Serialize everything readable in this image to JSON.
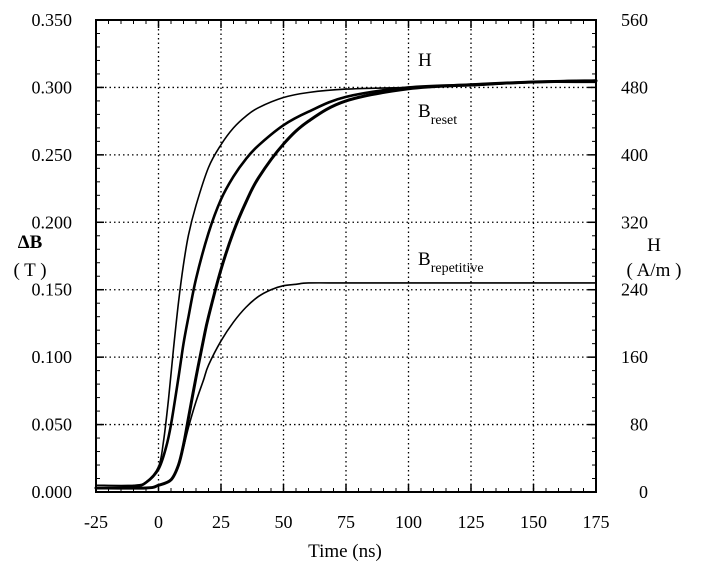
{
  "chart_data": {
    "type": "line",
    "xlabel": "Time (ns)",
    "ylabel_left_line1": "ΔB",
    "ylabel_left_line2": "( T )",
    "ylabel_right_line1": "H",
    "ylabel_right_line2": "( A/m )",
    "xlim": [
      -25,
      175
    ],
    "ylim_left": [
      0,
      0.35
    ],
    "ylim_right": [
      0,
      560
    ],
    "x_ticks": [
      "-25",
      "0",
      "25",
      "50",
      "75",
      "100",
      "125",
      "150",
      "175"
    ],
    "y_left_ticks": [
      "0.000",
      "0.050",
      "0.100",
      "0.150",
      "0.200",
      "0.250",
      "0.300",
      "0.350"
    ],
    "y_right_ticks": [
      "0",
      "80",
      "160",
      "240",
      "320",
      "400",
      "480",
      "560"
    ],
    "grid": true,
    "annotations": {
      "h_label": "H",
      "reset_main": "B",
      "reset_sub": "reset",
      "repetitive_main": "B",
      "repetitive_sub": "repetitive"
    },
    "series": [
      {
        "name": "H",
        "axis": "right",
        "x": [
          -25,
          -10,
          -5,
          0,
          2,
          4,
          6,
          8,
          10,
          12,
          15,
          20,
          25,
          30,
          35,
          40,
          50,
          60,
          75,
          100,
          125,
          150,
          175
        ],
        "y": [
          8,
          8,
          12,
          30,
          60,
          110,
          170,
          225,
          270,
          305,
          340,
          385,
          412,
          432,
          446,
          456,
          468,
          474,
          478,
          480,
          482,
          486,
          486
        ]
      },
      {
        "name": "B reset (upper)",
        "axis": "left",
        "x": [
          -25,
          -10,
          -5,
          0,
          3,
          5,
          8,
          10,
          12,
          15,
          20,
          25,
          30,
          35,
          40,
          50,
          60,
          75,
          100,
          125,
          150,
          175
        ],
        "y": [
          0.003,
          0.004,
          0.007,
          0.017,
          0.033,
          0.05,
          0.085,
          0.11,
          0.13,
          0.158,
          0.192,
          0.217,
          0.234,
          0.247,
          0.257,
          0.272,
          0.282,
          0.293,
          0.3,
          0.302,
          0.304,
          0.305
        ]
      },
      {
        "name": "B reset (lower)",
        "axis": "left",
        "x": [
          -25,
          -5,
          0,
          5,
          8,
          10,
          12,
          15,
          18,
          20,
          25,
          30,
          35,
          40,
          50,
          60,
          75,
          100,
          125,
          150,
          175
        ],
        "y": [
          0.003,
          0.003,
          0.005,
          0.009,
          0.02,
          0.035,
          0.055,
          0.085,
          0.113,
          0.13,
          0.165,
          0.193,
          0.215,
          0.233,
          0.258,
          0.275,
          0.29,
          0.299,
          0.302,
          0.304,
          0.305
        ]
      },
      {
        "name": "B repetitive",
        "axis": "left",
        "x": [
          -25,
          -5,
          0,
          5,
          8,
          10,
          12,
          15,
          18,
          20,
          25,
          30,
          35,
          40,
          45,
          50,
          55,
          60,
          75,
          100,
          125,
          150,
          175
        ],
        "y": [
          0.003,
          0.003,
          0.005,
          0.009,
          0.02,
          0.033,
          0.048,
          0.067,
          0.083,
          0.094,
          0.112,
          0.126,
          0.137,
          0.145,
          0.15,
          0.153,
          0.154,
          0.155,
          0.155,
          0.155,
          0.155,
          0.155,
          0.155
        ]
      }
    ]
  }
}
